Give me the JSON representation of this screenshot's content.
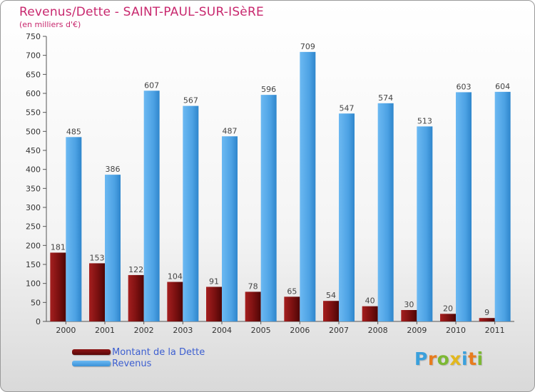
{
  "header": {
    "title": "Revenus/Dette - SAINT-PAUL-SUR-ISèRE",
    "subtitle": "(en milliers d'€)"
  },
  "legend": {
    "dette_label": "Montant de la Dette",
    "revenus_label": "Revenus"
  },
  "logo": {
    "letters": [
      "P",
      "r",
      "o",
      "x",
      "i",
      "t",
      "i"
    ],
    "colors": [
      "#3aa0dc",
      "#e77c1e",
      "#7cb833",
      "#e2b81e",
      "#3aa0dc",
      "#e77c1e",
      "#7cb833"
    ]
  },
  "colors": {
    "title": "#c8286e",
    "dette": "#7a1010",
    "revenus": "#55a6e6",
    "legend_text": "#3d5fd0"
  },
  "chart_data": {
    "type": "bar",
    "title": "Revenus/Dette - SAINT-PAUL-SUR-ISèRE",
    "ylabel": "(en milliers d'€)",
    "xlabel": "",
    "ylim": [
      0,
      750
    ],
    "ytick_step": 50,
    "grid": false,
    "legend_position": "bottom-left",
    "categories": [
      "2000",
      "2001",
      "2002",
      "2003",
      "2004",
      "2005",
      "2006",
      "2007",
      "2008",
      "2009",
      "2010",
      "2011"
    ],
    "series": [
      {
        "name": "Montant de la Dette",
        "values": [
          181,
          153,
          122,
          104,
          91,
          78,
          65,
          54,
          40,
          30,
          20,
          9
        ]
      },
      {
        "name": "Revenus",
        "values": [
          485,
          386,
          607,
          567,
          487,
          596,
          709,
          547,
          574,
          513,
          603,
          604
        ]
      }
    ]
  }
}
